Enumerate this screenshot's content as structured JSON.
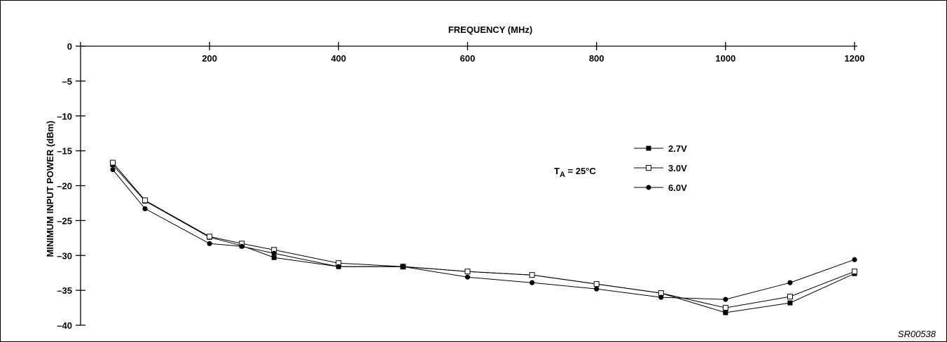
{
  "chart_data": {
    "type": "line",
    "title": "",
    "xlabel": "FREQUENCY (MHz)",
    "ylabel": "MINIMUM INPUT POWER (dBm)",
    "x_axis_position": "top",
    "xlim": [
      0,
      1200
    ],
    "ylim": [
      -40,
      0
    ],
    "x_ticks": [
      200,
      400,
      600,
      800,
      1000,
      1200
    ],
    "x_tick_labels": [
      "200",
      "400",
      "600",
      "800",
      "1000",
      "1200"
    ],
    "y_ticks": [
      0,
      -5,
      -10,
      -15,
      -20,
      -25,
      -30,
      -35,
      -40
    ],
    "y_tick_labels": [
      "0",
      "–5",
      "–10",
      "–15",
      "–20",
      "–25",
      "–30",
      "–35",
      "–40"
    ],
    "grid": false,
    "legend_position": "right",
    "x": [
      50,
      100,
      200,
      250,
      300,
      400,
      500,
      600,
      700,
      800,
      900,
      1000,
      1100,
      1200
    ],
    "series": [
      {
        "name": "2.7V",
        "marker": "filled-square",
        "values": [
          -17.0,
          -22.2,
          -27.4,
          -28.6,
          -30.3,
          -31.6,
          -31.6,
          -32.3,
          -32.8,
          -34.1,
          -35.4,
          -38.2,
          -36.8,
          -32.6
        ]
      },
      {
        "name": "3.0V",
        "marker": "open-square",
        "values": [
          -16.7,
          -22.1,
          -27.3,
          -28.3,
          -29.2,
          -31.1,
          -31.6,
          -32.3,
          -32.8,
          -34.1,
          -35.4,
          -37.5,
          -35.9,
          -32.3
        ]
      },
      {
        "name": "6.0V",
        "marker": "filled-circle",
        "values": [
          -17.7,
          -23.3,
          -28.3,
          -28.7,
          -29.7,
          -31.6,
          -31.6,
          -33.1,
          -33.9,
          -34.8,
          -36.0,
          -36.3,
          -33.9,
          -30.6
        ]
      }
    ],
    "annotation": {
      "main": "T",
      "sub": "A",
      "rest": " = 25°C"
    },
    "figure_code": "SR00538"
  }
}
